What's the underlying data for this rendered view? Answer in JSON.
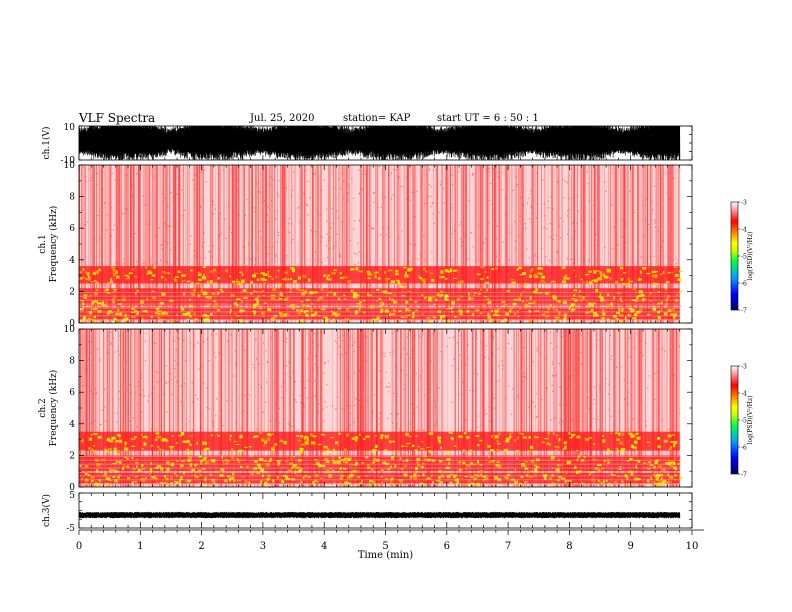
{
  "header": {
    "title": "VLF Spectra",
    "date": "Jul. 25, 2020",
    "station": "station= KAP",
    "start": "start  UT  =   6 : 50 : 1"
  },
  "chart_data": [
    {
      "type": "line",
      "panel": "ch1-waveform",
      "ylabel": "ch.1(V)",
      "ylim": [
        -10,
        10
      ],
      "y_tick_labels": [
        "10",
        "-10"
      ],
      "xlim": [
        0,
        10
      ],
      "signal_end_min": 9.8,
      "color": "#000000"
    },
    {
      "type": "heatmap",
      "panel": "ch1-spectrogram",
      "ylabel": "ch.1\nFrequency  (kHz)",
      "ylim": [
        0,
        10
      ],
      "y_ticks": [
        0,
        2,
        4,
        6,
        8,
        10
      ],
      "xlim": [
        0,
        10
      ],
      "signal_end_min": 9.8,
      "intense_bands_khz": [
        [
          0.2,
          1.0
        ],
        [
          1.1,
          2.2
        ],
        [
          2.5,
          3.6
        ]
      ],
      "colorbar": {
        "label": "log(PSD)(V²/Hz)",
        "range": [
          -7,
          -3
        ],
        "ticks": [
          "-3",
          "-4",
          "-5",
          "-6",
          "-7"
        ]
      }
    },
    {
      "type": "heatmap",
      "panel": "ch2-spectrogram",
      "ylabel": "ch.2\nFrequency  (kHz)",
      "ylim": [
        0,
        10
      ],
      "y_ticks": [
        0,
        2,
        4,
        6,
        8,
        10
      ],
      "xlim": [
        0,
        10
      ],
      "signal_end_min": 9.8,
      "intense_bands_khz": [
        [
          0.2,
          0.9
        ],
        [
          1.0,
          2.0
        ],
        [
          2.3,
          3.5
        ]
      ],
      "colorbar": {
        "label": "log(PSD)(V²/Hz)",
        "range": [
          -7,
          -3
        ],
        "ticks": [
          "-3",
          "-4",
          "-5",
          "-6",
          "-7"
        ]
      }
    },
    {
      "type": "line",
      "panel": "ch3-waveform",
      "ylabel": "ch.3(V)",
      "ylim": [
        -5,
        5
      ],
      "y_tick_labels": [
        "5",
        "-5"
      ],
      "xlim": [
        0,
        10
      ],
      "signal_level_v": -1.3,
      "signal_end_min": 9.8,
      "color": "#000000"
    }
  ],
  "x_axis": {
    "label": "Time  (min)",
    "ticks": [
      "0",
      "1",
      "2",
      "3",
      "4",
      "5",
      "6",
      "7",
      "8",
      "9",
      "10"
    ]
  }
}
